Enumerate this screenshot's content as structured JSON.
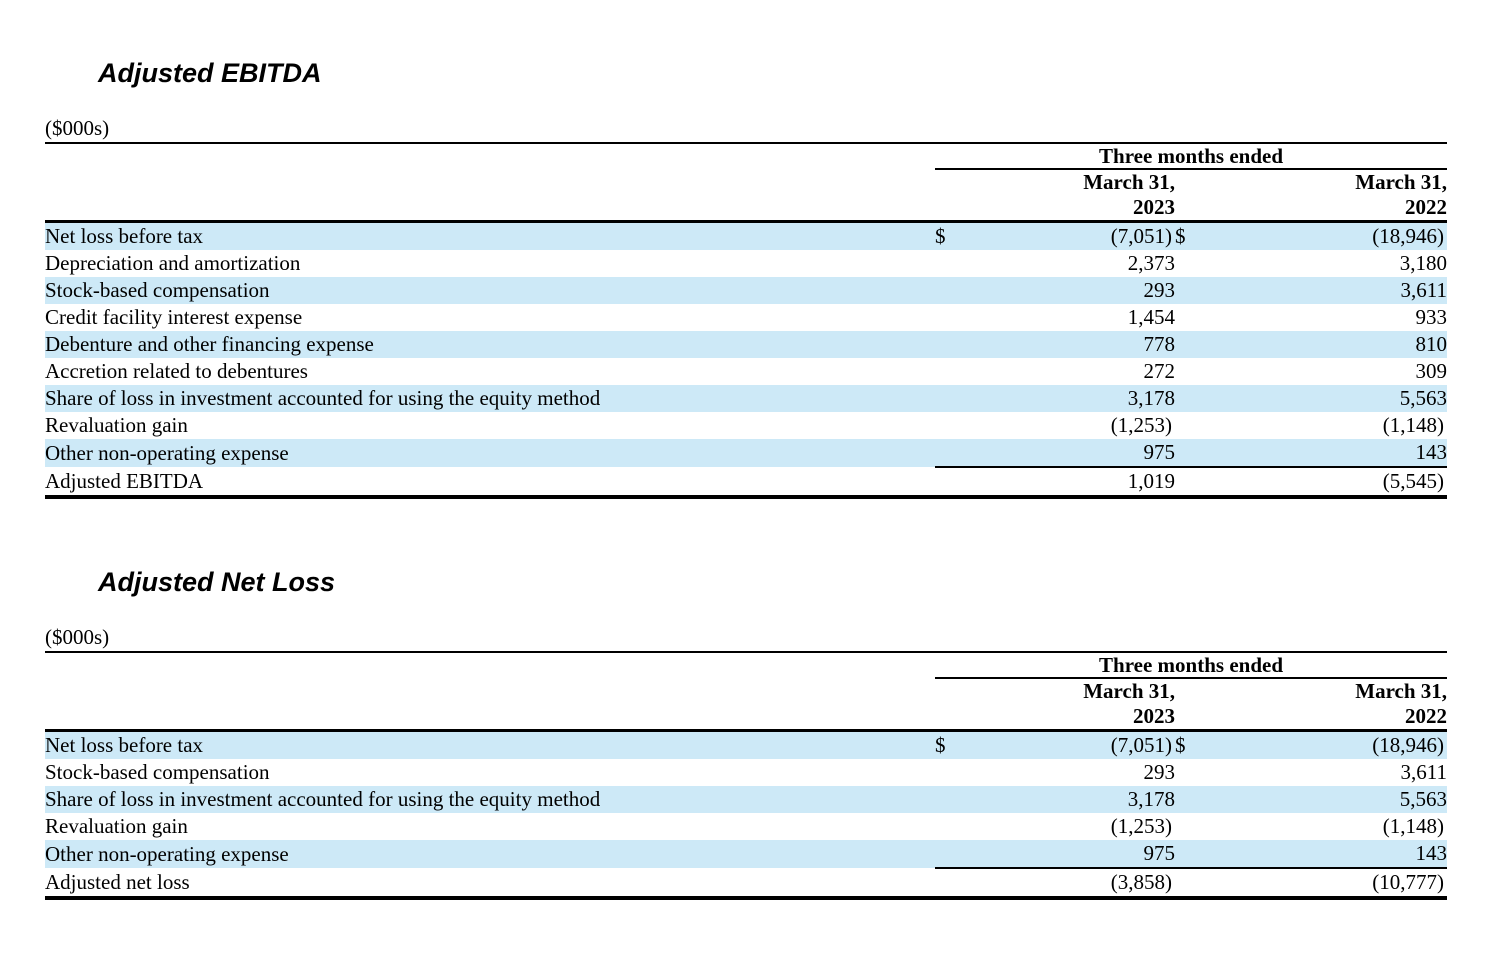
{
  "colors": {
    "row_shade": "#cde9f7",
    "text": "#000000",
    "rule": "#000000",
    "background": "#ffffff"
  },
  "sections": [
    {
      "title": "Adjusted EBITDA",
      "units": "($000s)",
      "table": {
        "group_header": "Three months ended",
        "columns": [
          {
            "line1": "March 31,",
            "line2": "2023"
          },
          {
            "line1": "March 31,",
            "line2": "2022"
          }
        ],
        "rows": [
          {
            "label": "Net loss before tax",
            "cur1": "$",
            "v1": "(7,051)",
            "cur2": "$",
            "v2": "(18,946)",
            "shaded": true
          },
          {
            "label": "Depreciation and amortization",
            "cur1": "",
            "v1": "2,373",
            "cur2": "",
            "v2": "3,180",
            "shaded": false
          },
          {
            "label": "Stock-based compensation",
            "cur1": "",
            "v1": "293",
            "cur2": "",
            "v2": "3,611",
            "shaded": true
          },
          {
            "label": "Credit facility interest expense",
            "cur1": "",
            "v1": "1,454",
            "cur2": "",
            "v2": "933",
            "shaded": false
          },
          {
            "label": "Debenture and other financing expense",
            "cur1": "",
            "v1": "778",
            "cur2": "",
            "v2": "810",
            "shaded": true
          },
          {
            "label": "Accretion related to debentures",
            "cur1": "",
            "v1": "272",
            "cur2": "",
            "v2": "309",
            "shaded": false
          },
          {
            "label": "Share of loss in investment accounted for using the equity method",
            "cur1": "",
            "v1": "3,178",
            "cur2": "",
            "v2": "5,563",
            "shaded": true
          },
          {
            "label": "Revaluation gain",
            "cur1": "",
            "v1": "(1,253)",
            "cur2": "",
            "v2": "(1,148)",
            "shaded": false
          },
          {
            "label": "Other non-operating expense",
            "cur1": "",
            "v1": "975",
            "cur2": "",
            "v2": "143",
            "shaded": true,
            "rule_below_values": true
          },
          {
            "label": "Adjusted EBITDA",
            "cur1": "",
            "v1": "1,019",
            "cur2": "",
            "v2": "(5,545)",
            "shaded": false,
            "total": true
          }
        ]
      }
    },
    {
      "title": "Adjusted Net Loss",
      "units": "($000s)",
      "table": {
        "group_header": "Three months ended",
        "columns": [
          {
            "line1": "March 31,",
            "line2": "2023"
          },
          {
            "line1": "March 31,",
            "line2": "2022"
          }
        ],
        "rows": [
          {
            "label": "Net loss before tax",
            "cur1": "$",
            "v1": "(7,051)",
            "cur2": "$",
            "v2": "(18,946)",
            "shaded": true
          },
          {
            "label": "Stock-based compensation",
            "cur1": "",
            "v1": "293",
            "cur2": "",
            "v2": "3,611",
            "shaded": false
          },
          {
            "label": "Share of loss in investment accounted for using the equity method",
            "cur1": "",
            "v1": "3,178",
            "cur2": "",
            "v2": "5,563",
            "shaded": true
          },
          {
            "label": "Revaluation gain",
            "cur1": "",
            "v1": "(1,253)",
            "cur2": "",
            "v2": "(1,148)",
            "shaded": false
          },
          {
            "label": "Other non-operating expense",
            "cur1": "",
            "v1": "975",
            "cur2": "",
            "v2": "143",
            "shaded": true,
            "rule_below_values": true
          },
          {
            "label": "Adjusted net loss",
            "cur1": "",
            "v1": "(3,858)",
            "cur2": "",
            "v2": "(10,777)",
            "shaded": false,
            "total": true
          }
        ]
      }
    }
  ]
}
